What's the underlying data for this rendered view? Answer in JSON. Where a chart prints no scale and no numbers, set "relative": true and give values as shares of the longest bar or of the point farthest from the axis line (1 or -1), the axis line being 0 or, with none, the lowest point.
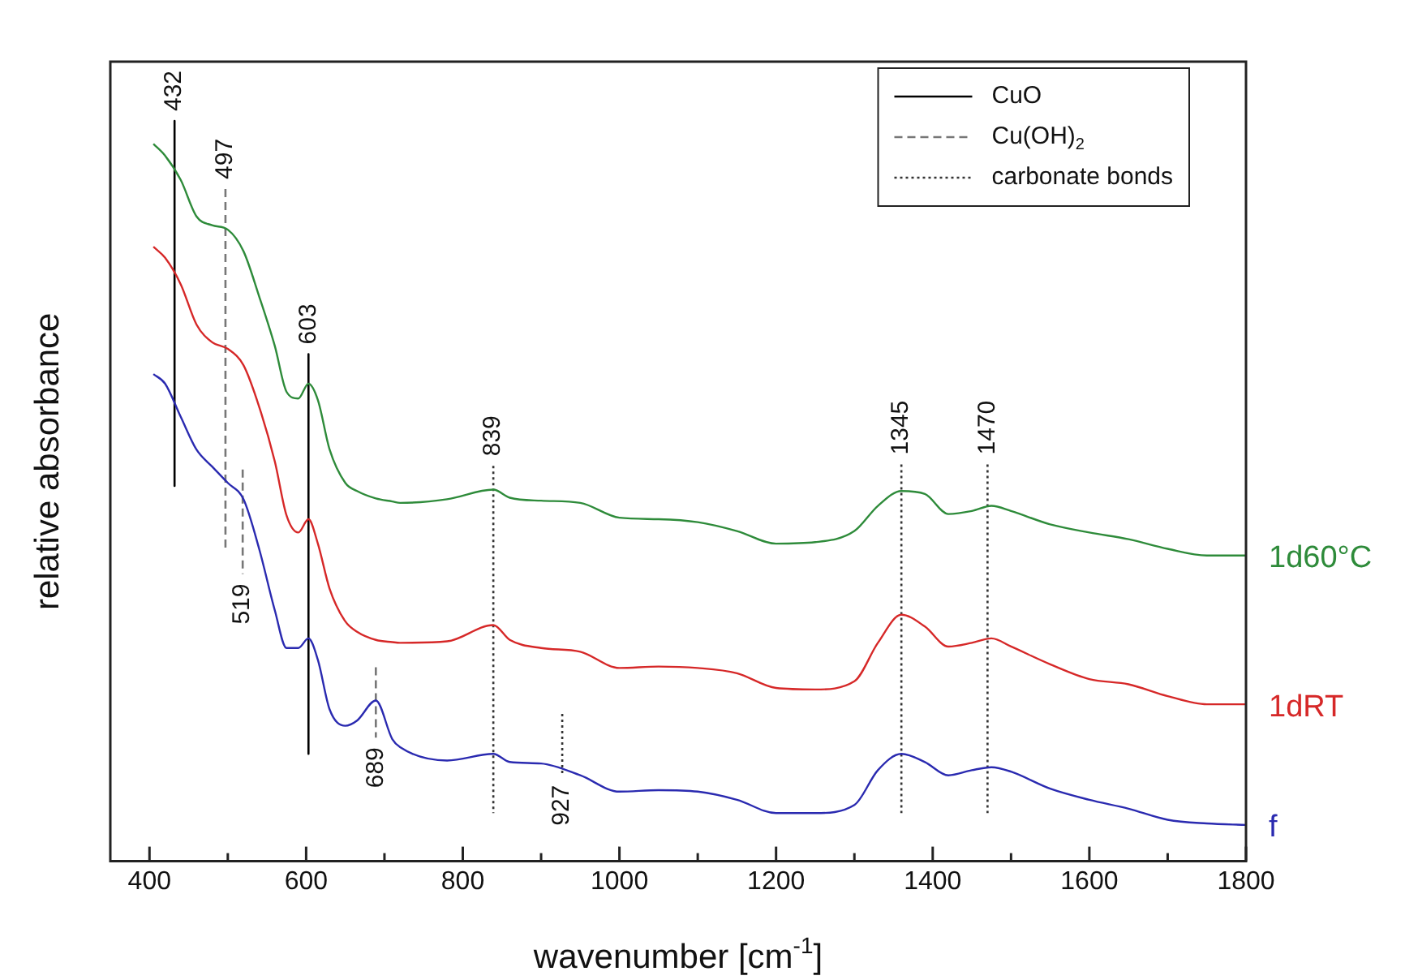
{
  "chart_data": {
    "type": "line",
    "relative": true,
    "xlabel": "wavenumber [cm$^{-1}$]",
    "ylabel": "relative absorbance",
    "xlim": [
      350,
      1800
    ],
    "xticks": [
      400,
      {
        "value": 500,
        "label": null
      },
      600,
      {
        "value": 700,
        "label": null
      },
      800,
      {
        "value": 900,
        "label": null
      },
      1000,
      {
        "value": 1100,
        "label": null
      },
      1200,
      {
        "value": 1300,
        "label": null
      },
      1400,
      {
        "value": 1500,
        "label": null
      },
      1600,
      {
        "value": 1700,
        "label": null
      },
      1800
    ],
    "x": [
      405,
      420,
      440,
      460,
      480,
      500,
      520,
      540,
      560,
      575,
      590,
      603,
      615,
      630,
      650,
      665,
      689,
      710,
      720,
      780,
      839,
      860,
      900,
      950,
      1000,
      1050,
      1100,
      1150,
      1200,
      1250,
      1300,
      1330,
      1360,
      1390,
      1420,
      1450,
      1475,
      1500,
      1550,
      1600,
      1650,
      1700,
      1750,
      1800
    ],
    "grid": false,
    "legend": "top right",
    "marker": "none",
    "series": [
      {
        "name": "1d60°C",
        "color": "#2e8b3a",
        "values": [
          0.969,
          0.953,
          0.92,
          0.871,
          0.859,
          0.853,
          0.824,
          0.763,
          0.696,
          0.634,
          0.625,
          0.645,
          0.623,
          0.556,
          0.511,
          0.5,
          0.49,
          0.486,
          0.484,
          0.489,
          0.502,
          0.491,
          0.487,
          0.484,
          0.464,
          0.462,
          0.458,
          0.446,
          0.429,
          0.431,
          0.446,
          0.48,
          0.5,
          0.496,
          0.469,
          0.473,
          0.48,
          0.473,
          0.455,
          0.444,
          0.435,
          0.422,
          0.413,
          0.413
        ]
      },
      {
        "name": "1dRT",
        "color": "#d62828",
        "values": [
          0.83,
          0.815,
          0.779,
          0.725,
          0.701,
          0.692,
          0.67,
          0.614,
          0.54,
          0.467,
          0.444,
          0.462,
          0.429,
          0.368,
          0.324,
          0.31,
          0.299,
          0.296,
          0.295,
          0.297,
          0.319,
          0.299,
          0.288,
          0.283,
          0.261,
          0.263,
          0.261,
          0.254,
          0.234,
          0.232,
          0.243,
          0.295,
          0.333,
          0.317,
          0.29,
          0.295,
          0.301,
          0.29,
          0.266,
          0.246,
          0.239,
          0.223,
          0.212,
          0.212
        ]
      },
      {
        "name": "f",
        "color": "#2a2ab0",
        "values": [
          0.658,
          0.645,
          0.6,
          0.556,
          0.533,
          0.511,
          0.489,
          0.422,
          0.339,
          0.288,
          0.288,
          0.301,
          0.272,
          0.205,
          0.183,
          0.19,
          0.217,
          0.165,
          0.154,
          0.136,
          0.145,
          0.134,
          0.132,
          0.116,
          0.094,
          0.096,
          0.094,
          0.083,
          0.065,
          0.065,
          0.076,
          0.123,
          0.145,
          0.134,
          0.116,
          0.123,
          0.127,
          0.121,
          0.098,
          0.083,
          0.071,
          0.056,
          0.051,
          0.049
        ]
      },
      {
        "name": "CuO",
        "color": "#000000",
        "line_style": "solid",
        "x": [
          432,
          432,
          null,
          603,
          603
        ],
        "values": [
          1.0,
          0.507,
          null,
          0.685,
          0.145
        ]
      },
      {
        "name": "Cu(OH)$_{2}$",
        "color": "#777777",
        "line_style": "dashed",
        "x": [
          497,
          497,
          null,
          519,
          519,
          null,
          689,
          689
        ],
        "values": [
          0.908,
          0.417,
          null,
          0.529,
          0.388,
          null,
          0.262,
          0.167
        ]
      },
      {
        "name": "carbonate bonds",
        "color": "#333333",
        "line_style": "dotted",
        "x": [
          839,
          839,
          null,
          927,
          927,
          null,
          1360,
          1360,
          null,
          1470,
          1470
        ],
        "values": [
          0.534,
          0.065,
          null,
          0.199,
          0.116,
          null,
          0.536,
          0.065,
          null,
          0.536,
          0.065
        ]
      }
    ],
    "annotations": [
      {
        "text": "432",
        "x": 432,
        "y": 1.0
      },
      {
        "text": "497",
        "x": 497,
        "y": 0.908
      },
      {
        "text": "519",
        "x": 519,
        "y": 0.388
      },
      {
        "text": "603",
        "x": 603,
        "y": 0.685
      },
      {
        "text": "689",
        "x": 689,
        "y": 0.167
      },
      {
        "text": "839",
        "x": 839,
        "y": 0.534
      },
      {
        "text": "927",
        "x": 927,
        "y": 0.116
      },
      {
        "text": "1345",
        "x": 1360,
        "y": 0.536
      },
      {
        "text": "1470",
        "x": 1470,
        "y": 0.536
      }
    ]
  }
}
